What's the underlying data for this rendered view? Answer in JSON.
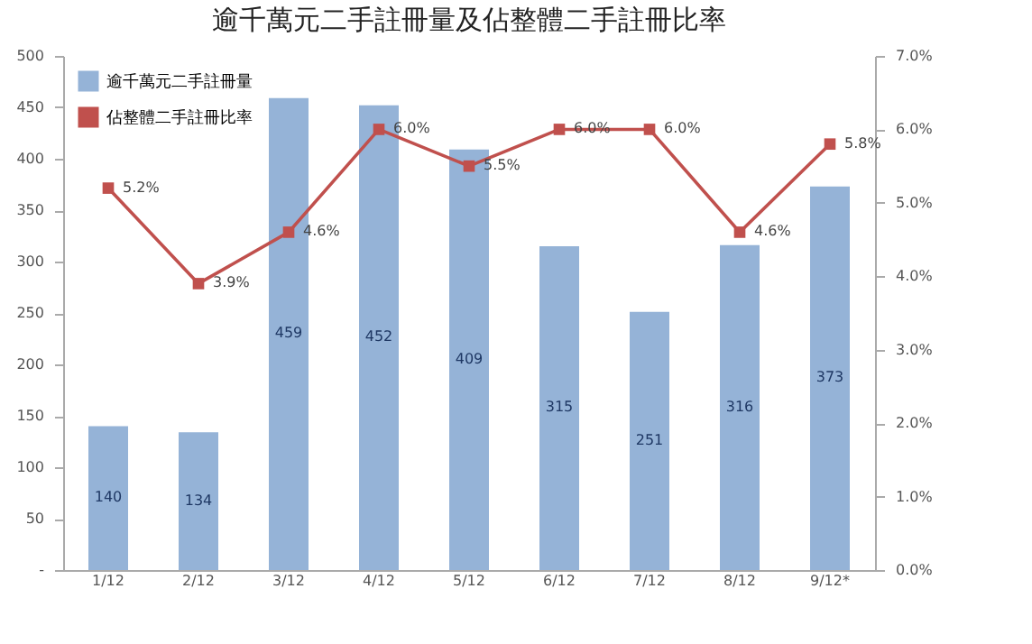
{
  "chart_data": {
    "type": "bar",
    "title": "逾千萬元二手註冊量及佔整體二手註冊比率",
    "categories": [
      "1/12",
      "2/12",
      "3/12",
      "4/12",
      "5/12",
      "6/12",
      "7/12",
      "8/12",
      "9/12*"
    ],
    "series": [
      {
        "name": "逾千萬元二手註冊量",
        "color": "#95b3d7",
        "values": [
          140,
          134,
          459,
          452,
          409,
          315,
          251,
          316,
          373
        ],
        "data_labels": true
      },
      {
        "name": "佔整體二手註冊比率",
        "type": "line",
        "axis": "y2",
        "color": "#c0504d",
        "values": [
          5.2,
          3.9,
          4.6,
          6.0,
          5.5,
          6.0,
          6.0,
          4.6,
          5.8
        ],
        "value_labels": [
          "5.2%",
          "3.9%",
          "4.6%",
          "6.0%",
          "5.5%",
          "6.0%",
          "6.0%",
          "4.6%",
          "5.8%"
        ]
      }
    ],
    "ylim": [
      0,
      500
    ],
    "yticks": [
      {
        "value": 0,
        "label": "-"
      },
      50,
      100,
      150,
      200,
      250,
      300,
      350,
      400,
      450,
      500
    ],
    "y2lim": [
      0,
      7
    ],
    "y2ticks": [
      {
        "value": 0,
        "label": "0.0%"
      },
      {
        "value": 1,
        "label": "1.0%"
      },
      {
        "value": 2,
        "label": "2.0%"
      },
      {
        "value": 3,
        "label": "3.0%"
      },
      {
        "value": 4,
        "label": "4.0%"
      },
      {
        "value": 5,
        "label": "5.0%"
      },
      {
        "value": 6,
        "label": "6.0%"
      },
      {
        "value": 7,
        "label": "7.0%"
      }
    ],
    "legend": "top left",
    "grid": false,
    "marker": "square",
    "line_style": "solid"
  }
}
